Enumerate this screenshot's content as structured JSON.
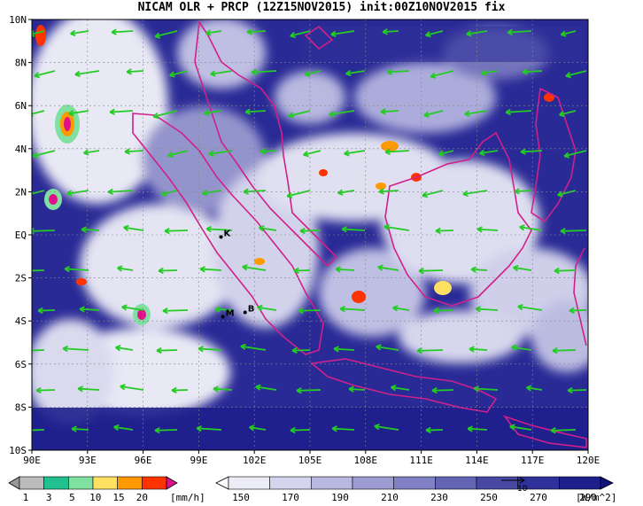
{
  "title": "NICAM OLR + PRCP (12Z15NOV2015) init:00Z10NOV2015 fix",
  "map": {
    "lon_ticks": [
      "90E",
      "93E",
      "96E",
      "99E",
      "102E",
      "105E",
      "108E",
      "111E",
      "114E",
      "117E",
      "120E"
    ],
    "lat_ticks": [
      "10N",
      "8N",
      "6N",
      "4N",
      "2N",
      "EQ",
      "2S",
      "4S",
      "6S",
      "8S",
      "10S"
    ],
    "station_markers": [
      {
        "label": "K",
        "lon": 100.2,
        "lat": -0.1
      },
      {
        "label": "M",
        "lon": 100.3,
        "lat": -3.8
      },
      {
        "label": "B",
        "lon": 101.5,
        "lat": -3.6
      }
    ],
    "colors": {
      "ocean_low_olr": "#1a1a8c",
      "cloud_high": "#ffffff",
      "wind_vector": "#22cc22",
      "coast": "#d0208a"
    }
  },
  "precip_legend": {
    "values": [
      "1",
      "3",
      "5",
      "10",
      "15",
      "20"
    ],
    "unit": "[mm/h]",
    "colors": [
      "#999999",
      "#bbbbbb",
      "#20c090",
      "#80e0a0",
      "#ffe060",
      "#ff9900",
      "#ff3300",
      "#e0108a"
    ]
  },
  "olr_legend": {
    "values": [
      "150",
      "170",
      "190",
      "210",
      "230",
      "250",
      "270",
      "290"
    ],
    "unit": "[W/m^2]",
    "reference_vector": "10",
    "colors": [
      "#ffffff",
      "#ececf6",
      "#d4d4ee",
      "#b8b8e0",
      "#9c9cd2",
      "#8080c4",
      "#6464b4",
      "#4848a4",
      "#30309a",
      "#1e1e8c",
      "#101080"
    ]
  }
}
